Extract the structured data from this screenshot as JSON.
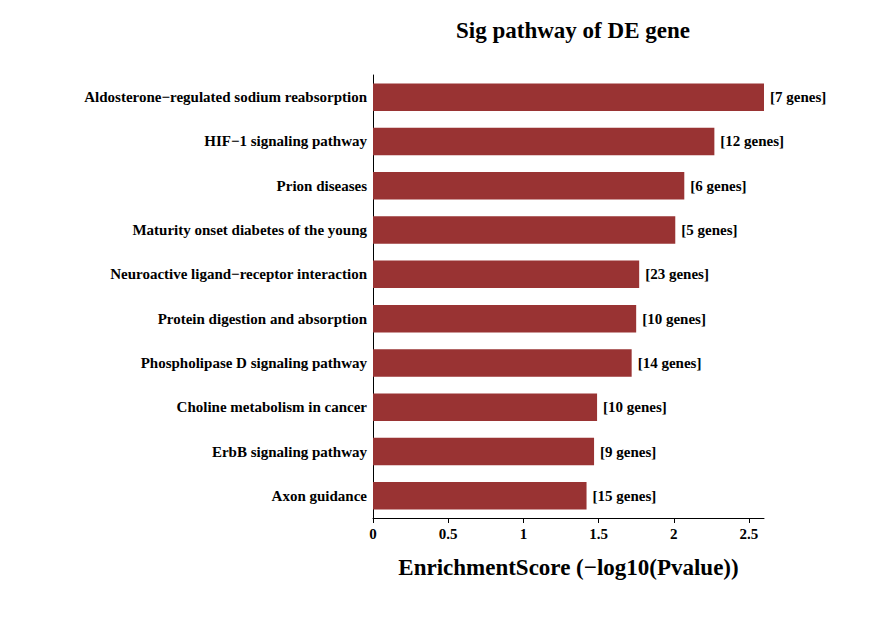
{
  "chart_data": {
    "type": "bar",
    "orientation": "horizontal",
    "title": "Sig pathway of DE gene",
    "x_label": "EnrichmentScore (−log10(Pvalue))",
    "categories": [
      "Aldosterone−regulated sodium reabsorption",
      "HIF−1 signaling pathway",
      "Prion diseases",
      "Maturity onset diabetes of the young",
      "Neuroactive ligand−receptor interaction",
      "Protein digestion and absorption",
      "Phospholipase D signaling pathway",
      "Choline metabolism in cancer",
      "ErbB signaling pathway",
      "Axon guidance"
    ],
    "values": [
      2.6,
      2.27,
      2.07,
      2.01,
      1.77,
      1.75,
      1.72,
      1.49,
      1.47,
      1.42
    ],
    "bar_labels": [
      "[7 genes]",
      "[12 genes]",
      "[6 genes]",
      "[5 genes]",
      "[23 genes]",
      "[10 genes]",
      "[14 genes]",
      "[10 genes]",
      "[9 genes]",
      "[15 genes]"
    ],
    "color": "#993333",
    "xlim": [
      0,
      2.6
    ],
    "xticks": [
      0,
      0.5,
      1,
      1.5,
      2,
      2.5
    ],
    "grid": false,
    "data_labels": false
  }
}
